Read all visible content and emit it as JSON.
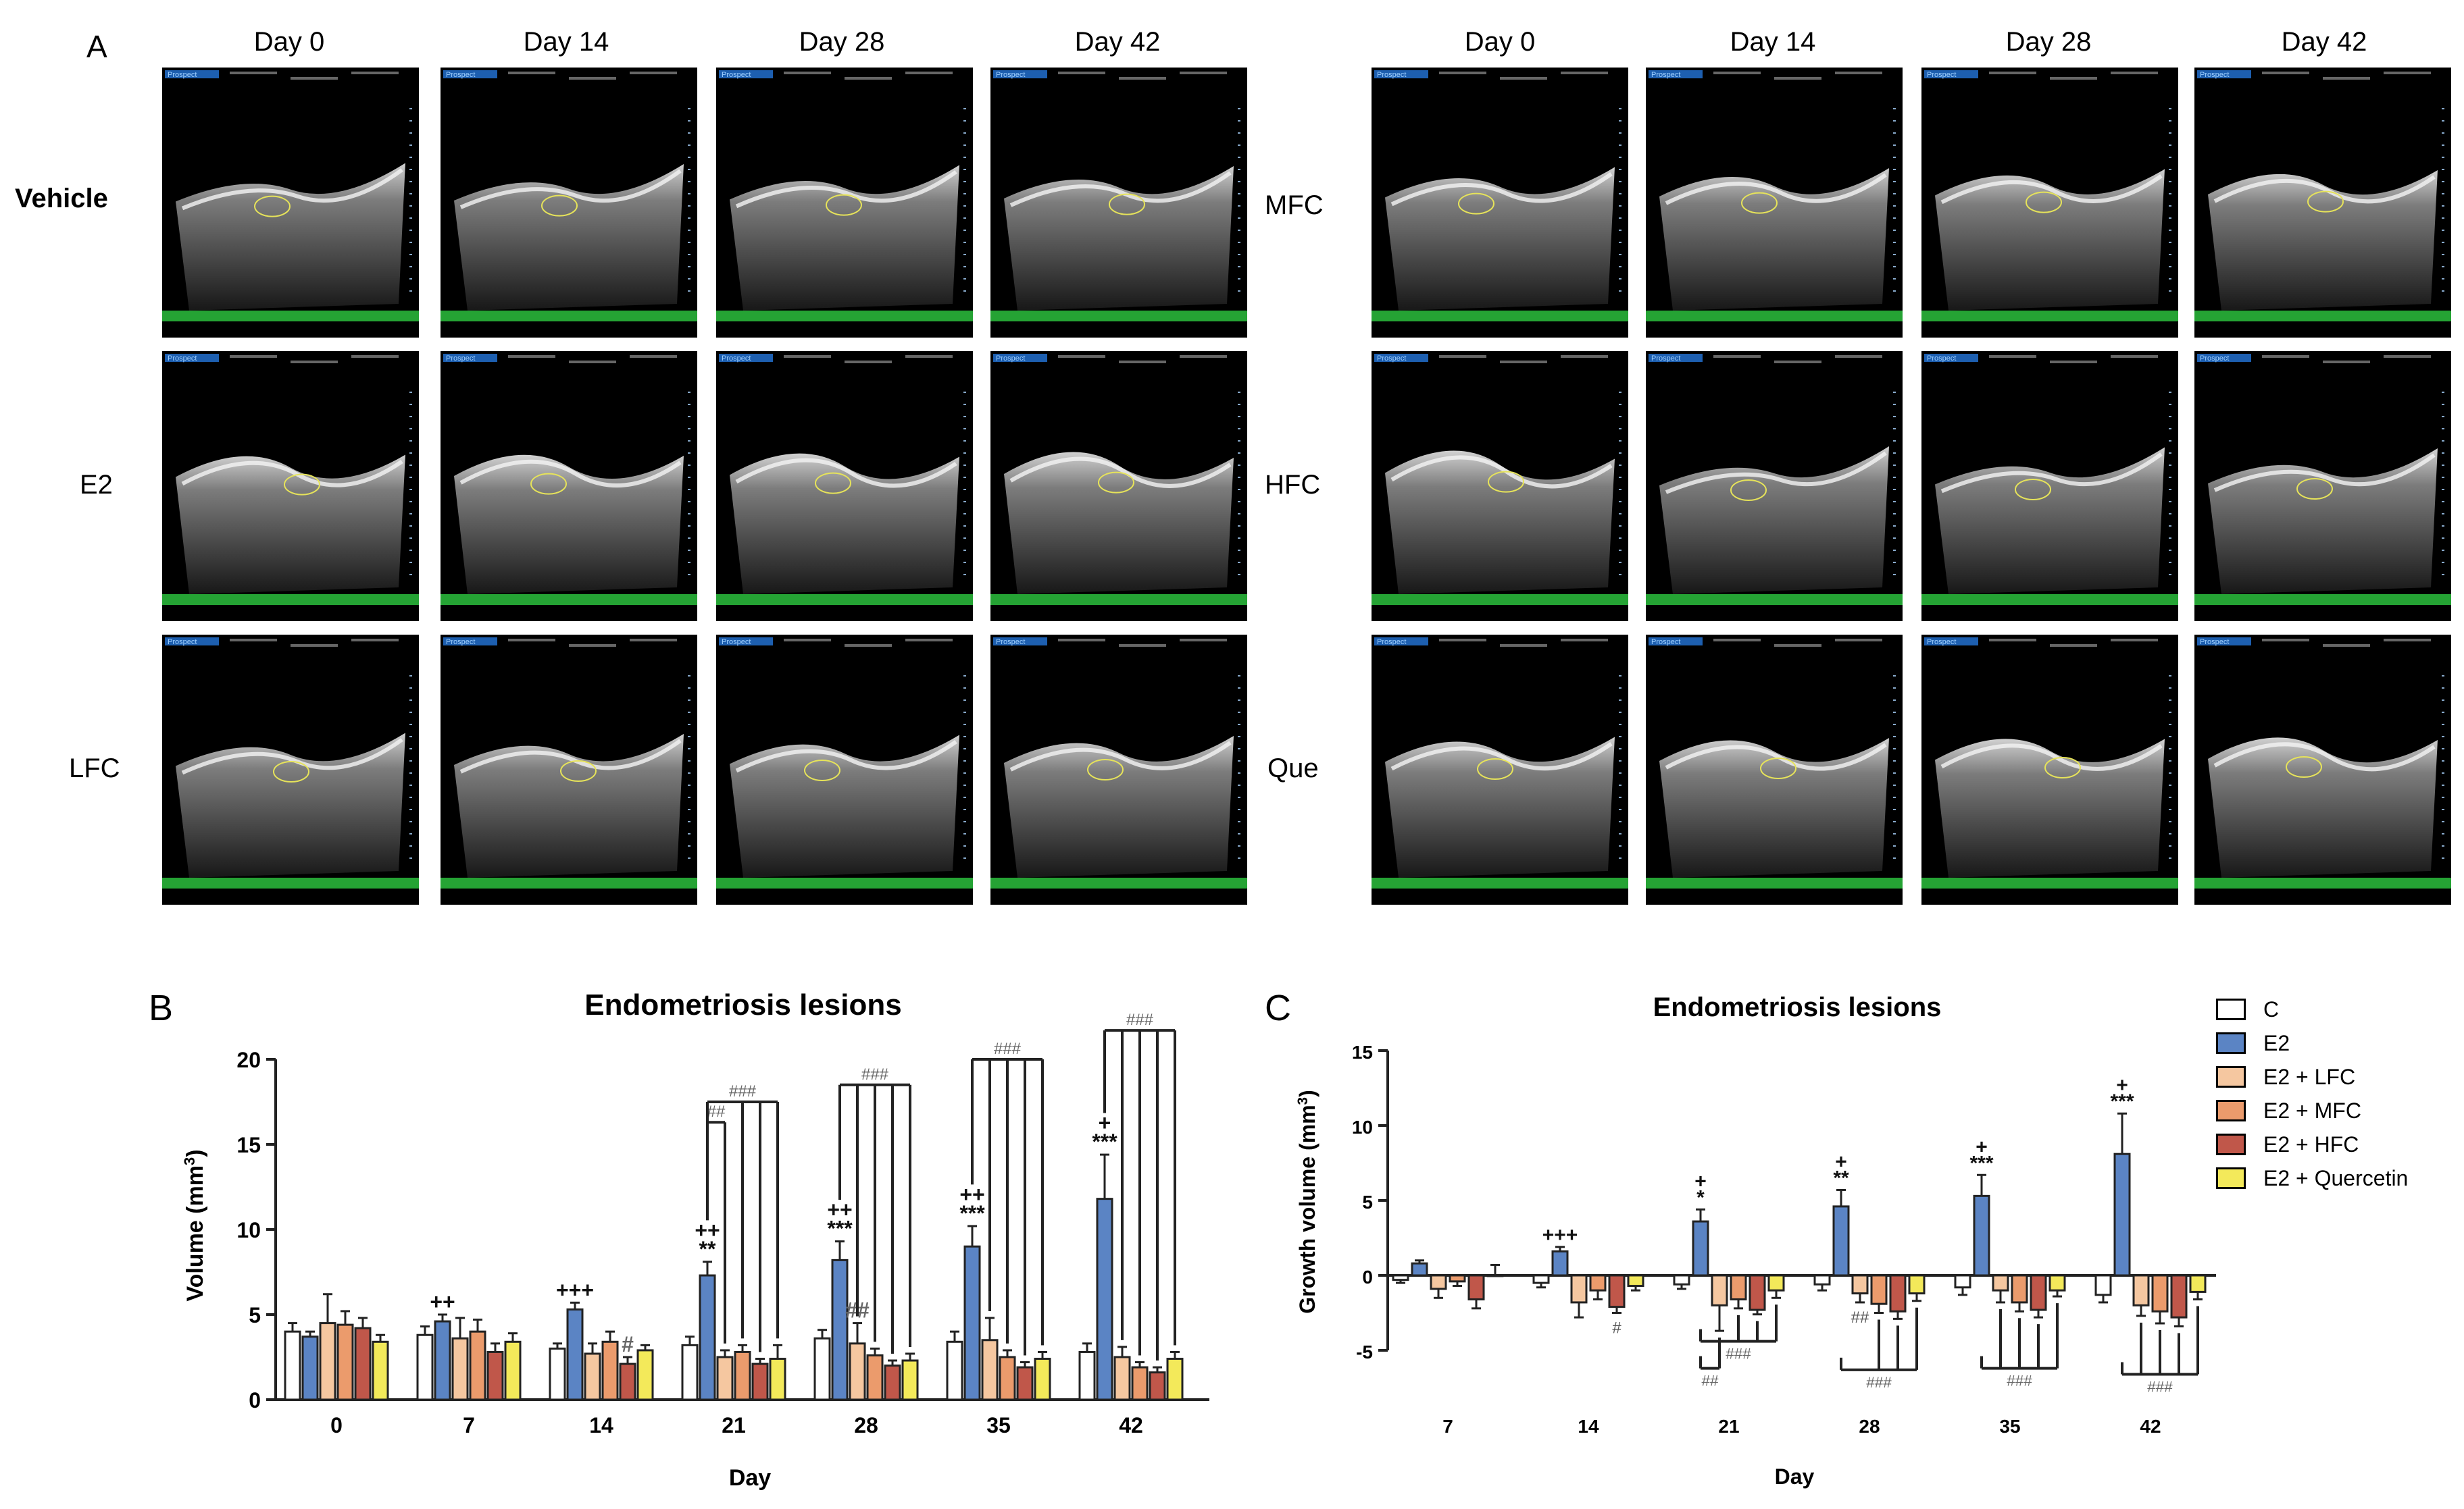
{
  "panel_a": {
    "label": "A",
    "days": [
      "Day 0",
      "Day 14",
      "Day 28",
      "Day 42"
    ],
    "left_groups": [
      "Vehicle",
      "E2",
      "LFC"
    ],
    "right_groups": [
      "MFC",
      "HFC",
      "Que"
    ],
    "frame_brand": "Prospect"
  },
  "colors": {
    "C": "#ffffff",
    "E2": "#5b84c4",
    "LFC": "#f5c7a0",
    "MFC": "#eb9b6c",
    "HFC": "#c0574a",
    "Quercetin": "#f3e95a"
  },
  "legend": [
    "C",
    "E2",
    "E2 + LFC",
    "E2 + MFC",
    "E2 + HFC",
    "E2 + Quercetin"
  ],
  "chart_data": [
    {
      "panel": "B",
      "type": "bar",
      "title": "Endometriosis lesions",
      "xlabel": "Day",
      "ylabel": "Volume (mm3)",
      "ylabel_main": "Volume (mm",
      "ylabel_sup": "3",
      "ylabel_tail": ")",
      "ylim": [
        0,
        20
      ],
      "yticks": [
        0,
        5,
        10,
        15,
        20
      ],
      "categories": [
        "0",
        "7",
        "14",
        "21",
        "28",
        "35",
        "42"
      ],
      "series": [
        {
          "name": "C",
          "values": [
            4.0,
            3.8,
            3.0,
            3.2,
            3.6,
            3.4,
            2.8
          ],
          "errors": [
            0.5,
            0.5,
            0.3,
            0.5,
            0.5,
            0.6,
            0.5
          ]
        },
        {
          "name": "E2",
          "values": [
            3.7,
            4.6,
            5.3,
            7.3,
            8.2,
            9.0,
            11.8
          ],
          "errors": [
            0.3,
            0.4,
            0.4,
            0.8,
            1.1,
            1.2,
            2.6
          ]
        },
        {
          "name": "E2 + LFC",
          "values": [
            4.5,
            3.6,
            2.7,
            2.5,
            3.3,
            3.5,
            2.5
          ],
          "errors": [
            1.7,
            1.2,
            0.6,
            0.4,
            1.2,
            1.3,
            0.6
          ]
        },
        {
          "name": "E2 + MFC",
          "values": [
            4.4,
            4.0,
            3.4,
            2.8,
            2.6,
            2.5,
            1.9
          ],
          "errors": [
            0.8,
            0.7,
            0.6,
            0.4,
            0.4,
            0.4,
            0.3
          ]
        },
        {
          "name": "E2 + HFC",
          "values": [
            4.2,
            2.8,
            2.1,
            2.1,
            2.0,
            1.9,
            1.6
          ],
          "errors": [
            0.6,
            0.5,
            0.4,
            0.3,
            0.3,
            0.3,
            0.3
          ]
        },
        {
          "name": "E2 + Quercetin",
          "values": [
            3.4,
            3.4,
            2.9,
            2.4,
            2.3,
            2.4,
            2.4
          ],
          "errors": [
            0.4,
            0.5,
            0.3,
            0.8,
            0.4,
            0.4,
            0.4
          ]
        }
      ],
      "annotations": [
        {
          "category": "7",
          "series": "E2",
          "lines": [
            "++"
          ]
        },
        {
          "category": "14",
          "series": "E2",
          "lines": [
            "+++"
          ]
        },
        {
          "category": "14",
          "series": "E2 + HFC",
          "lines": [
            "#"
          ]
        },
        {
          "category": "21",
          "series": "E2",
          "lines": [
            "++",
            "**"
          ]
        },
        {
          "category": "28",
          "series": "E2",
          "lines": [
            "++",
            "***"
          ]
        },
        {
          "category": "28",
          "series": "E2 + LFC",
          "lines": [
            "##"
          ]
        },
        {
          "category": "35",
          "series": "E2",
          "lines": [
            "++",
            "***"
          ]
        },
        {
          "category": "42",
          "series": "E2",
          "lines": [
            "+",
            "***"
          ]
        }
      ],
      "brackets": [
        {
          "category": "21",
          "label": "##",
          "to": [
            "E2 + LFC"
          ],
          "level": 16.3
        },
        {
          "category": "21",
          "label": "###",
          "to": [
            "E2 + MFC",
            "E2 + HFC",
            "E2 + Quercetin"
          ],
          "level": 17.5
        },
        {
          "category": "28",
          "label": "###",
          "to": [
            "E2 + LFC",
            "E2 + MFC",
            "E2 + HFC",
            "E2 + Quercetin"
          ],
          "level": 18.5
        },
        {
          "category": "35",
          "label": "###",
          "to": [
            "E2 + LFC",
            "E2 + MFC",
            "E2 + HFC",
            "E2 + Quercetin"
          ],
          "level": 20.0
        },
        {
          "category": "42",
          "label": "###",
          "to": [
            "E2 + LFC",
            "E2 + MFC",
            "E2 + HFC",
            "E2 + Quercetin"
          ],
          "level": 21.7
        }
      ]
    },
    {
      "panel": "C",
      "type": "bar",
      "title": "Endometriosis lesions",
      "xlabel": "Day",
      "ylabel": "Growth volume (mm3)",
      "ylabel_main": "Growth volume (mm",
      "ylabel_sup": "3",
      "ylabel_tail": ")",
      "ylim": [
        -5,
        15
      ],
      "yticks": [
        -5,
        0,
        5,
        10,
        15
      ],
      "categories": [
        "7",
        "14",
        "21",
        "28",
        "35",
        "42"
      ],
      "series": [
        {
          "name": "C",
          "values": [
            -0.3,
            -0.5,
            -0.6,
            -0.6,
            -0.8,
            -1.3
          ],
          "errors": [
            0.2,
            0.3,
            0.3,
            0.4,
            0.5,
            0.5
          ]
        },
        {
          "name": "E2",
          "values": [
            0.8,
            1.6,
            3.6,
            4.6,
            5.3,
            8.1
          ],
          "errors": [
            0.2,
            0.3,
            0.8,
            1.1,
            1.4,
            2.7
          ]
        },
        {
          "name": "E2 + LFC",
          "values": [
            -0.9,
            -1.8,
            -2.0,
            -1.2,
            -1.0,
            -2.0
          ],
          "errors": [
            0.6,
            1.0,
            1.7,
            0.6,
            0.8,
            0.7
          ]
        },
        {
          "name": "E2 + MFC",
          "values": [
            -0.4,
            -1.0,
            -1.6,
            -1.9,
            -1.8,
            -2.4
          ],
          "errors": [
            0.3,
            0.6,
            0.6,
            0.6,
            0.6,
            0.8
          ]
        },
        {
          "name": "E2 + HFC",
          "values": [
            -1.6,
            -2.1,
            -2.3,
            -2.4,
            -2.3,
            -2.8
          ],
          "errors": [
            0.6,
            0.4,
            0.3,
            0.5,
            0.5,
            0.6
          ]
        },
        {
          "name": "E2 + Quercetin",
          "values": [
            0.0,
            -0.7,
            -1.0,
            -1.2,
            -1.0,
            -1.1
          ],
          "errors": [
            0.7,
            0.3,
            0.5,
            0.5,
            0.4,
            0.5
          ]
        }
      ],
      "annotations": [
        {
          "category": "14",
          "series": "E2",
          "lines": [
            "+++"
          ]
        },
        {
          "category": "14",
          "series": "E2 + HFC",
          "lines": [
            "#"
          ]
        },
        {
          "category": "21",
          "series": "E2",
          "lines": [
            "+",
            "*"
          ]
        },
        {
          "category": "28",
          "series": "E2",
          "lines": [
            "+",
            "**"
          ]
        },
        {
          "category": "28",
          "series": "E2 + LFC",
          "lines": [
            "##"
          ]
        },
        {
          "category": "35",
          "series": "E2",
          "lines": [
            "+",
            "***"
          ]
        },
        {
          "category": "42",
          "series": "E2",
          "lines": [
            "+",
            "***"
          ]
        }
      ],
      "brackets": [
        {
          "category": "21",
          "label": "###",
          "to": [
            "E2 + MFC",
            "E2 + HFC",
            "E2 + Quercetin"
          ],
          "level": -4.4
        },
        {
          "category": "21",
          "label": "##",
          "to": [
            "E2 + LFC"
          ],
          "level": -6.2
        },
        {
          "category": "28",
          "label": "###",
          "to": [
            "E2 + MFC",
            "E2 + HFC",
            "E2 + Quercetin"
          ],
          "level": -6.3
        },
        {
          "category": "35",
          "label": "###",
          "to": [
            "E2 + LFC",
            "E2 + MFC",
            "E2 + HFC",
            "E2 + Quercetin"
          ],
          "level": -6.2
        },
        {
          "category": "42",
          "label": "###",
          "to": [
            "E2 + LFC",
            "E2 + MFC",
            "E2 + HFC",
            "E2 + Quercetin"
          ],
          "level": -6.6
        }
      ]
    }
  ]
}
